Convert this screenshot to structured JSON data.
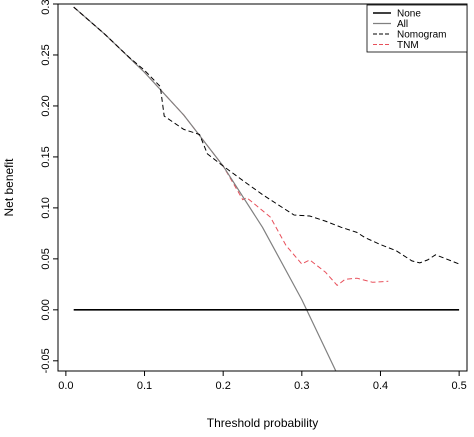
{
  "chart_data": {
    "type": "line",
    "title": "",
    "xlabel": "Threshold probability",
    "ylabel": "Net benefit",
    "xlim": [
      -0.01,
      0.51
    ],
    "ylim": [
      -0.06,
      0.3
    ],
    "x_ticks": [
      0.0,
      0.1,
      0.2,
      0.3,
      0.4,
      0.5
    ],
    "x_tick_labels": [
      "0.0",
      "0.1",
      "0.2",
      "0.3",
      "0.4",
      "0.5"
    ],
    "y_ticks": [
      -0.05,
      0.0,
      0.05,
      0.1,
      0.15,
      0.2,
      0.25,
      0.3
    ],
    "y_tick_labels": [
      "-0.05",
      "0.00",
      "0.05",
      "0.10",
      "0.15",
      "0.20",
      "0.25",
      "0.30"
    ],
    "grid": false,
    "legend_position": "top-right",
    "series": [
      {
        "name": "None",
        "color": "#000000",
        "dash": "solid",
        "width": 1.6,
        "x": [
          0.01,
          0.5
        ],
        "y": [
          0.0,
          0.0
        ]
      },
      {
        "name": "All",
        "color": "#808080",
        "dash": "solid",
        "width": 1.2,
        "x": [
          0.01,
          0.05,
          0.1,
          0.15,
          0.2,
          0.25,
          0.3,
          0.3475
        ],
        "y": [
          0.297,
          0.27,
          0.233,
          0.191,
          0.141,
          0.081,
          0.01,
          -0.067
        ]
      },
      {
        "name": "Nomogram",
        "color": "#000000",
        "dash": "dashed",
        "width": 1.0,
        "x": [
          0.01,
          0.05,
          0.08,
          0.1,
          0.12,
          0.125,
          0.15,
          0.17,
          0.18,
          0.2,
          0.23,
          0.25,
          0.27,
          0.29,
          0.31,
          0.33,
          0.35,
          0.37,
          0.38,
          0.4,
          0.42,
          0.44,
          0.45,
          0.46,
          0.47,
          0.48,
          0.5
        ],
        "y": [
          0.297,
          0.27,
          0.248,
          0.235,
          0.219,
          0.19,
          0.177,
          0.172,
          0.153,
          0.141,
          0.124,
          0.113,
          0.103,
          0.093,
          0.092,
          0.087,
          0.081,
          0.076,
          0.071,
          0.064,
          0.058,
          0.048,
          0.046,
          0.049,
          0.054,
          0.051,
          0.045
        ]
      },
      {
        "name": "TNM",
        "color": "#e8505b",
        "dash": "dashed",
        "width": 1.0,
        "x": [
          0.01,
          0.05,
          0.1,
          0.15,
          0.2,
          0.225,
          0.23,
          0.26,
          0.28,
          0.3,
          0.31,
          0.33,
          0.345,
          0.355,
          0.37,
          0.39,
          0.41
        ],
        "y": [
          0.297,
          0.27,
          0.233,
          0.191,
          0.141,
          0.108,
          0.11,
          0.091,
          0.063,
          0.045,
          0.049,
          0.037,
          0.024,
          0.03,
          0.031,
          0.027,
          0.028
        ]
      }
    ]
  }
}
